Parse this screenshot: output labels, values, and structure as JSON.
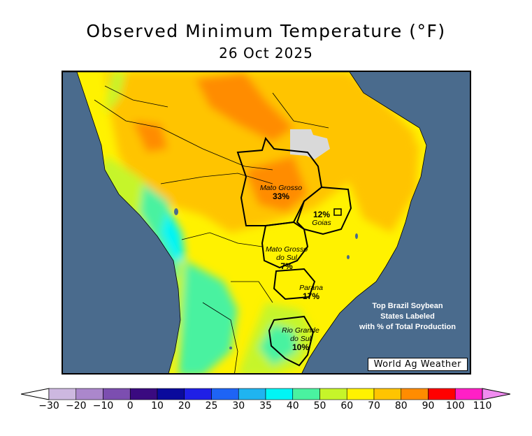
{
  "title": "Observed Minimum Temperature (°F)",
  "subtitle": "26 Oct 2025",
  "map": {
    "ocean_color": "#4a6b8d",
    "missing_data_color": "#d9d9d9",
    "states": [
      {
        "name": "Mato Grosso",
        "share": "33%"
      },
      {
        "name": "Goias",
        "share": "12%"
      },
      {
        "name": "Mato Grosso do Sul",
        "share": "7%"
      },
      {
        "name": "Parana",
        "share": "17%"
      },
      {
        "name": "Rio Grande do Sul",
        "share": "10%"
      }
    ],
    "labels": {
      "mato_grosso": "Mato Grosso",
      "mato_grosso_pct": "33%",
      "goias": "Goias",
      "goias_pct": "12%",
      "ms_line1": "Mato Grosso",
      "ms_line2": "do Sul",
      "ms_pct": "7%",
      "parana": "Parana",
      "parana_pct": "17%",
      "rs_line1": "Rio Grande",
      "rs_line2": "do Sul",
      "rs_pct": "10%"
    },
    "note_lines": [
      "Top Brazil Soybean",
      "States Labeled",
      "with % of Total Production"
    ],
    "credit": "World Ag Weather"
  },
  "legend": {
    "ticks": [
      "−30",
      "−20",
      "−10",
      "0",
      "10",
      "20",
      "25",
      "30",
      "35",
      "40",
      "50",
      "60",
      "70",
      "80",
      "90",
      "100",
      "110"
    ],
    "colors": [
      "#cdb8e0",
      "#ab87cc",
      "#7c4eb0",
      "#3a0a80",
      "#0a0a9c",
      "#1f1fe6",
      "#1e64f5",
      "#1fb4f0",
      "#00f5f5",
      "#4af2a0",
      "#c6f52a",
      "#fff200",
      "#ffc400",
      "#ff8c00",
      "#ff0000",
      "#ff1fc6",
      "#f08cf0"
    ],
    "under_color": "#ffffff",
    "over_color": "#f08cf0"
  }
}
